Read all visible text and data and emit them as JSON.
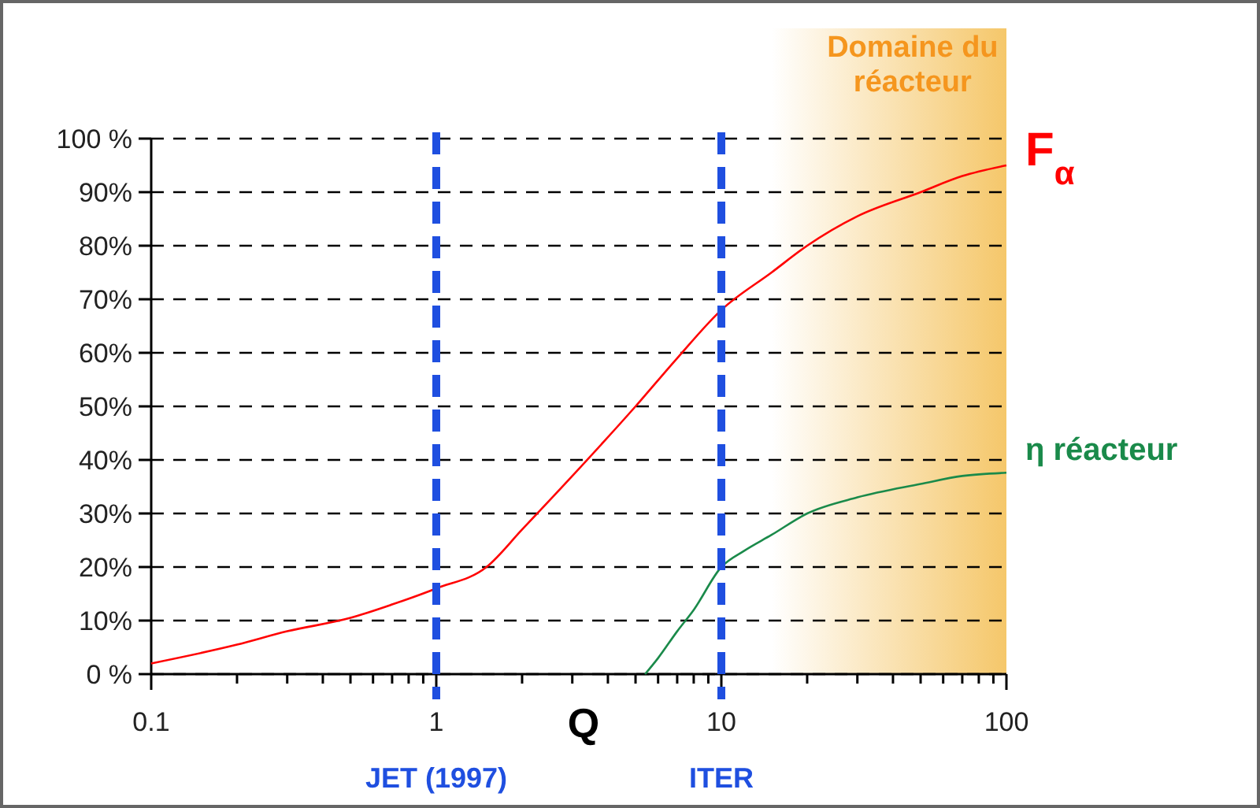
{
  "chart_data": {
    "type": "line",
    "xlabel": "Q",
    "log": "x",
    "grid": "y",
    "tick_labels": "xy",
    "xlim": [
      0.1,
      100
    ],
    "ylim": [
      0,
      100
    ],
    "xticks": [
      0.1,
      {
        "value": 0.2,
        "label": null
      },
      {
        "value": 0.3,
        "label": null
      },
      {
        "value": 0.4,
        "label": null
      },
      {
        "value": 0.5,
        "label": null
      },
      {
        "value": 0.6,
        "label": null
      },
      {
        "value": 0.7,
        "label": null
      },
      {
        "value": 0.8,
        "label": null
      },
      {
        "value": 0.9,
        "label": null
      },
      1,
      {
        "value": 2,
        "label": null
      },
      {
        "value": 3,
        "label": null
      },
      {
        "value": 4,
        "label": null
      },
      {
        "value": 5,
        "label": null
      },
      {
        "value": 6,
        "label": null
      },
      {
        "value": 7,
        "label": null
      },
      {
        "value": 8,
        "label": null
      },
      {
        "value": 9,
        "label": null
      },
      10,
      {
        "value": 20,
        "label": null
      },
      {
        "value": 30,
        "label": null
      },
      {
        "value": 40,
        "label": null
      },
      {
        "value": 50,
        "label": null
      },
      {
        "value": 60,
        "label": null
      },
      {
        "value": 70,
        "label": null
      },
      {
        "value": 80,
        "label": null
      },
      {
        "value": 90,
        "label": null
      },
      100
    ],
    "yticks": [
      {
        "value": 0,
        "label": "0 %"
      },
      {
        "value": 10,
        "label": "10%"
      },
      {
        "value": 20,
        "label": "20%"
      },
      {
        "value": 30,
        "label": "30%"
      },
      {
        "value": 40,
        "label": "40%"
      },
      {
        "value": 50,
        "label": "50%"
      },
      {
        "value": 60,
        "label": "60%"
      },
      {
        "value": 70,
        "label": "70%"
      },
      {
        "value": 80,
        "label": "80%"
      },
      {
        "value": 90,
        "label": "90%"
      },
      {
        "value": 100,
        "label": "100 %"
      }
    ],
    "marker": "none",
    "line_style": "solid",
    "series": [
      {
        "name": "F$_{α}$",
        "color": "#ff0000",
        "x": [
          0.1,
          0.2,
          0.3,
          0.5,
          0.7,
          1,
          1.5,
          2,
          3,
          5,
          7,
          10,
          15,
          20,
          30,
          50,
          70,
          100
        ],
        "values": [
          2,
          5.5,
          8,
          10.5,
          13,
          16,
          20,
          27,
          37,
          50,
          59,
          68,
          75,
          80,
          85.5,
          90,
          93,
          95
        ]
      },
      {
        "name": "η réacteur",
        "color": "#1a8a4a",
        "x": [
          5.4,
          6,
          7,
          8,
          10,
          12,
          15,
          20,
          30,
          50,
          70,
          100
        ],
        "values": [
          0,
          3,
          8,
          12,
          20,
          23,
          26,
          30,
          33,
          35.5,
          37,
          37.6
        ]
      }
    ],
    "ref_lines": [
      {
        "axis": "x",
        "value": 1,
        "label": "JET (1997)",
        "color": "#1f4fe0",
        "line_style": "dashed"
      },
      {
        "axis": "x",
        "value": 10,
        "label": "ITER",
        "color": "#1f4fe0",
        "line_style": "dashed"
      }
    ],
    "bands": [
      {
        "axis": "x",
        "from": 15,
        "to": 100,
        "label": "Domaine du réacteur",
        "color": "#f5c76a"
      }
    ]
  }
}
